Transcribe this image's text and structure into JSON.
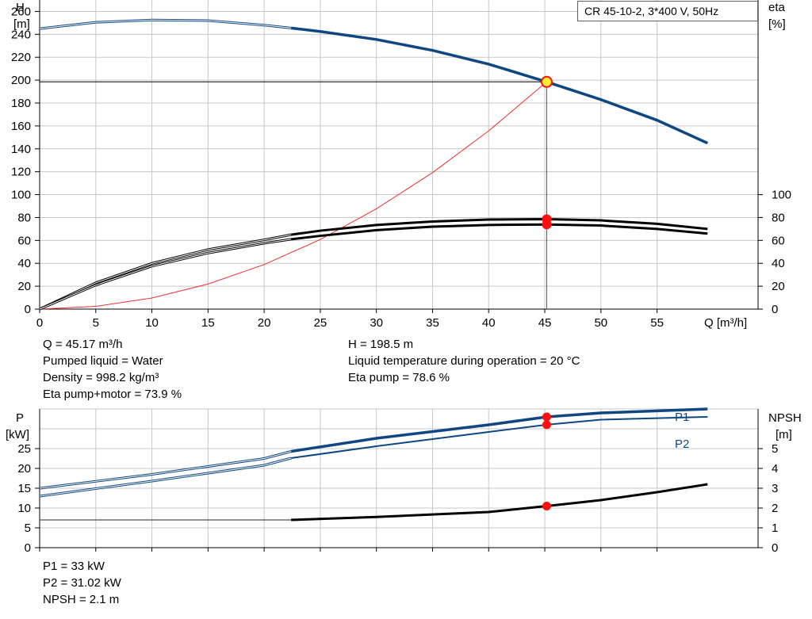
{
  "title": "CR 45-10-2, 3*400 V, 50Hz",
  "chart_data": [
    {
      "id": "head_eta",
      "type": "line",
      "x_axis": {
        "label": "Q [m³/h]",
        "range": [
          0,
          64
        ],
        "ticks": [
          0,
          5,
          10,
          15,
          20,
          25,
          30,
          35,
          40,
          45,
          50,
          55
        ]
      },
      "y_left": {
        "label_line1": "H",
        "label_line2": "[m]",
        "range": [
          0,
          270
        ],
        "ticks": [
          0,
          20,
          40,
          60,
          80,
          100,
          120,
          140,
          160,
          180,
          200,
          220,
          240,
          260
        ]
      },
      "y_right": {
        "label_line1": "eta",
        "label_line2": "[%]",
        "range": [
          0,
          270
        ],
        "ticks": [
          0,
          20,
          40,
          60,
          80,
          100
        ]
      },
      "grid": true,
      "series": [
        {
          "role": "H curve",
          "color": "#0e4781",
          "active_from": 22.4,
          "points": [
            [
              0,
              245
            ],
            [
              5,
              250.5
            ],
            [
              10,
              252.5
            ],
            [
              15,
              252
            ],
            [
              20,
              248
            ],
            [
              22.4,
              245.5
            ],
            [
              25,
              242.5
            ],
            [
              30,
              235.5
            ],
            [
              35,
              226
            ],
            [
              40,
              214
            ],
            [
              45.17,
              198.5
            ],
            [
              50,
              183
            ],
            [
              55,
              165
            ],
            [
              59.5,
              145
            ]
          ]
        },
        {
          "role": "Eta pump",
          "color": "#000000",
          "active_from": 22.4,
          "points": [
            [
              0,
              0
            ],
            [
              5,
              23
            ],
            [
              10,
              40
            ],
            [
              15,
              52
            ],
            [
              20,
              60.5
            ],
            [
              22.4,
              65
            ],
            [
              25,
              68.5
            ],
            [
              30,
              73.5
            ],
            [
              35,
              76.5
            ],
            [
              40,
              78.2
            ],
            [
              45.17,
              78.6
            ],
            [
              50,
              77.5
            ],
            [
              55,
              74.5
            ],
            [
              59.5,
              70
            ]
          ]
        },
        {
          "role": "Eta pump+motor",
          "color": "#000000",
          "active_from": 22.4,
          "points": [
            [
              0,
              0
            ],
            [
              5,
              21
            ],
            [
              10,
              37.5
            ],
            [
              15,
              49
            ],
            [
              20,
              57.5
            ],
            [
              22.4,
              61
            ],
            [
              25,
              64
            ],
            [
              30,
              69
            ],
            [
              35,
              72
            ],
            [
              40,
              73.5
            ],
            [
              45.17,
              73.9
            ],
            [
              50,
              73
            ],
            [
              55,
              70
            ],
            [
              59.5,
              66
            ]
          ]
        },
        {
          "role": "System curve",
          "color": "#ef3030",
          "points": [
            [
              0,
              0
            ],
            [
              5,
              2.4
            ],
            [
              10,
              9.7
            ],
            [
              15,
              21.9
            ],
            [
              20,
              38.9
            ],
            [
              25,
              60.8
            ],
            [
              30,
              87.6
            ],
            [
              35,
              119.2
            ],
            [
              40,
              155.7
            ],
            [
              45.17,
              198.5
            ]
          ]
        }
      ],
      "operating_point": {
        "Q": 45.17,
        "H": 198.5,
        "eta_pump": 78.6,
        "eta_pump_motor": 73.9
      }
    },
    {
      "id": "power_npsh",
      "type": "line",
      "x_axis": {
        "range": [
          0,
          64
        ],
        "ticks": [
          0,
          5,
          10,
          15,
          20,
          25,
          30,
          35,
          40,
          45,
          50,
          55
        ]
      },
      "y_left": {
        "label_line1": "P",
        "label_line2": "[kW]",
        "range": [
          0,
          35
        ],
        "ticks": [
          0,
          5,
          10,
          15,
          20,
          25
        ]
      },
      "y_right": {
        "label_line1": "NPSH",
        "label_line2": "[m]",
        "range": [
          0,
          7
        ],
        "ticks": [
          0,
          1,
          2,
          3,
          4,
          5
        ]
      },
      "grid": true,
      "series": [
        {
          "name": "P1",
          "color": "#0e4781",
          "axis": "left",
          "active_from": 22.4,
          "points": [
            [
              0,
              15
            ],
            [
              10,
              18.5
            ],
            [
              20,
              22.5
            ],
            [
              22.4,
              24.3
            ],
            [
              30,
              27.6
            ],
            [
              40,
              31
            ],
            [
              45.17,
              33
            ],
            [
              50,
              34
            ],
            [
              59.5,
              35
            ]
          ]
        },
        {
          "name": "P2",
          "color": "#0e4781",
          "axis": "left",
          "active_from": 22.4,
          "points": [
            [
              0,
              13
            ],
            [
              10,
              16.8
            ],
            [
              20,
              20.8
            ],
            [
              22.4,
              22.6
            ],
            [
              30,
              25.6
            ],
            [
              40,
              29.2
            ],
            [
              45.17,
              31.02
            ],
            [
              50,
              32.3
            ],
            [
              59.5,
              33
            ]
          ]
        },
        {
          "role": "NPSH",
          "color": "#000000",
          "axis": "right",
          "active_from": 22.4,
          "points": [
            [
              0,
              1.4
            ],
            [
              10,
              1.4
            ],
            [
              20,
              1.4
            ],
            [
              22.4,
              1.4
            ],
            [
              30,
              1.55
            ],
            [
              40,
              1.8
            ],
            [
              45.17,
              2.1
            ],
            [
              50,
              2.4
            ],
            [
              55,
              2.8
            ],
            [
              59.5,
              3.2
            ]
          ]
        }
      ],
      "operating_point": {
        "Q": 45.17,
        "P1": 33,
        "P2": 31.02,
        "NPSH": 2.1
      }
    }
  ],
  "info_top_left": [
    "Q = 45.17 m³/h",
    "Pumped liquid = Water",
    "Density = 998.2 kg/m³",
    "Eta pump+motor = 73.9 %"
  ],
  "info_top_right": [
    "H = 198.5 m",
    "Liquid temperature during operation = 20 °C",
    "Eta pump = 78.6 %"
  ],
  "info_bottom": [
    "P1 = 33 kW",
    "P2 = 31.02 kW",
    "NPSH = 2.1 m"
  ],
  "colors": {
    "blue": "#0e4781",
    "red_marker": "#ff1010",
    "system_curve": "#ef3030",
    "grid": "#c8c8c8",
    "op_marker_fill": "#ffee33"
  }
}
